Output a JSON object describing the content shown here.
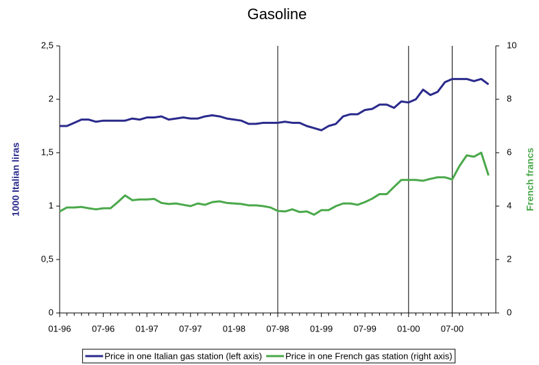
{
  "chart_data": {
    "type": "line",
    "title": "Gasoline",
    "y_label": "1000 Italian liras",
    "y2_label": "French francs",
    "categories": [
      "01-96",
      null,
      null,
      null,
      null,
      null,
      "07-96",
      null,
      null,
      null,
      null,
      null,
      "01-97",
      null,
      null,
      null,
      null,
      null,
      "07-97",
      null,
      null,
      null,
      null,
      null,
      "01-98",
      null,
      null,
      null,
      null,
      null,
      "07-98",
      null,
      null,
      null,
      null,
      null,
      "01-99",
      null,
      null,
      null,
      null,
      null,
      "07-99",
      null,
      null,
      null,
      null,
      null,
      "01-00",
      null,
      null,
      null,
      null,
      null,
      "07-00",
      null,
      null,
      null,
      null,
      null
    ],
    "series": [
      {
        "name": "Price in one Italian gas station (left axis)",
        "color": "#2a2a8c",
        "values": [
          1.75,
          1.75,
          1.78,
          1.81,
          1.81,
          1.79,
          1.8,
          1.8,
          1.8,
          1.8,
          1.82,
          1.81,
          1.83,
          1.83,
          1.84,
          1.81,
          1.82,
          1.83,
          1.82,
          1.82,
          1.84,
          1.85,
          1.84,
          1.82,
          1.81,
          1.8,
          1.77,
          1.77,
          1.78,
          1.78,
          1.78,
          1.79,
          1.78,
          1.78,
          1.75,
          1.73,
          1.71,
          1.75,
          1.77,
          1.84,
          1.86,
          1.86,
          1.9,
          1.91,
          1.95,
          1.95,
          1.92,
          1.98,
          1.97,
          2.0,
          2.09,
          2.04,
          2.07,
          2.16,
          2.19,
          2.19,
          2.19,
          2.17,
          2.19,
          2.14
        ]
      },
      {
        "name": "Price in one French  gas station (right axis)",
        "color": "#4aa84a",
        "axis": "y2",
        "values": [
          3.8,
          3.95,
          3.95,
          3.97,
          3.92,
          3.88,
          3.92,
          3.92,
          4.15,
          4.4,
          4.22,
          4.25,
          4.25,
          4.27,
          4.12,
          4.08,
          4.1,
          4.05,
          4.0,
          4.1,
          4.05,
          4.15,
          4.18,
          4.12,
          4.1,
          4.08,
          4.03,
          4.03,
          4.0,
          3.95,
          3.82,
          3.8,
          3.88,
          3.78,
          3.8,
          3.68,
          3.85,
          3.85,
          4.0,
          4.1,
          4.1,
          4.05,
          4.15,
          4.28,
          4.45,
          4.45,
          4.72,
          4.98,
          4.98,
          4.98,
          4.95,
          5.02,
          5.08,
          5.08,
          5.0,
          5.5,
          5.9,
          5.85,
          6.0,
          5.15
        ]
      }
    ],
    "ylim": [
      0,
      2.5
    ],
    "yticks": [
      0,
      {
        "value": 0.5,
        "label": "0,5"
      },
      1,
      {
        "value": 1.5,
        "label": "1,5"
      },
      2,
      {
        "value": 2.5,
        "label": "2,5"
      }
    ],
    "y2lim": [
      0,
      10
    ],
    "y2ticks": [
      0,
      2,
      4,
      6,
      8,
      10
    ],
    "y_label_color": "#2a2a8c",
    "y2_label_color": "#4aa84a",
    "vertical_lines": [
      "07-98",
      "01-00",
      "07-00"
    ],
    "legend": "bottom"
  }
}
